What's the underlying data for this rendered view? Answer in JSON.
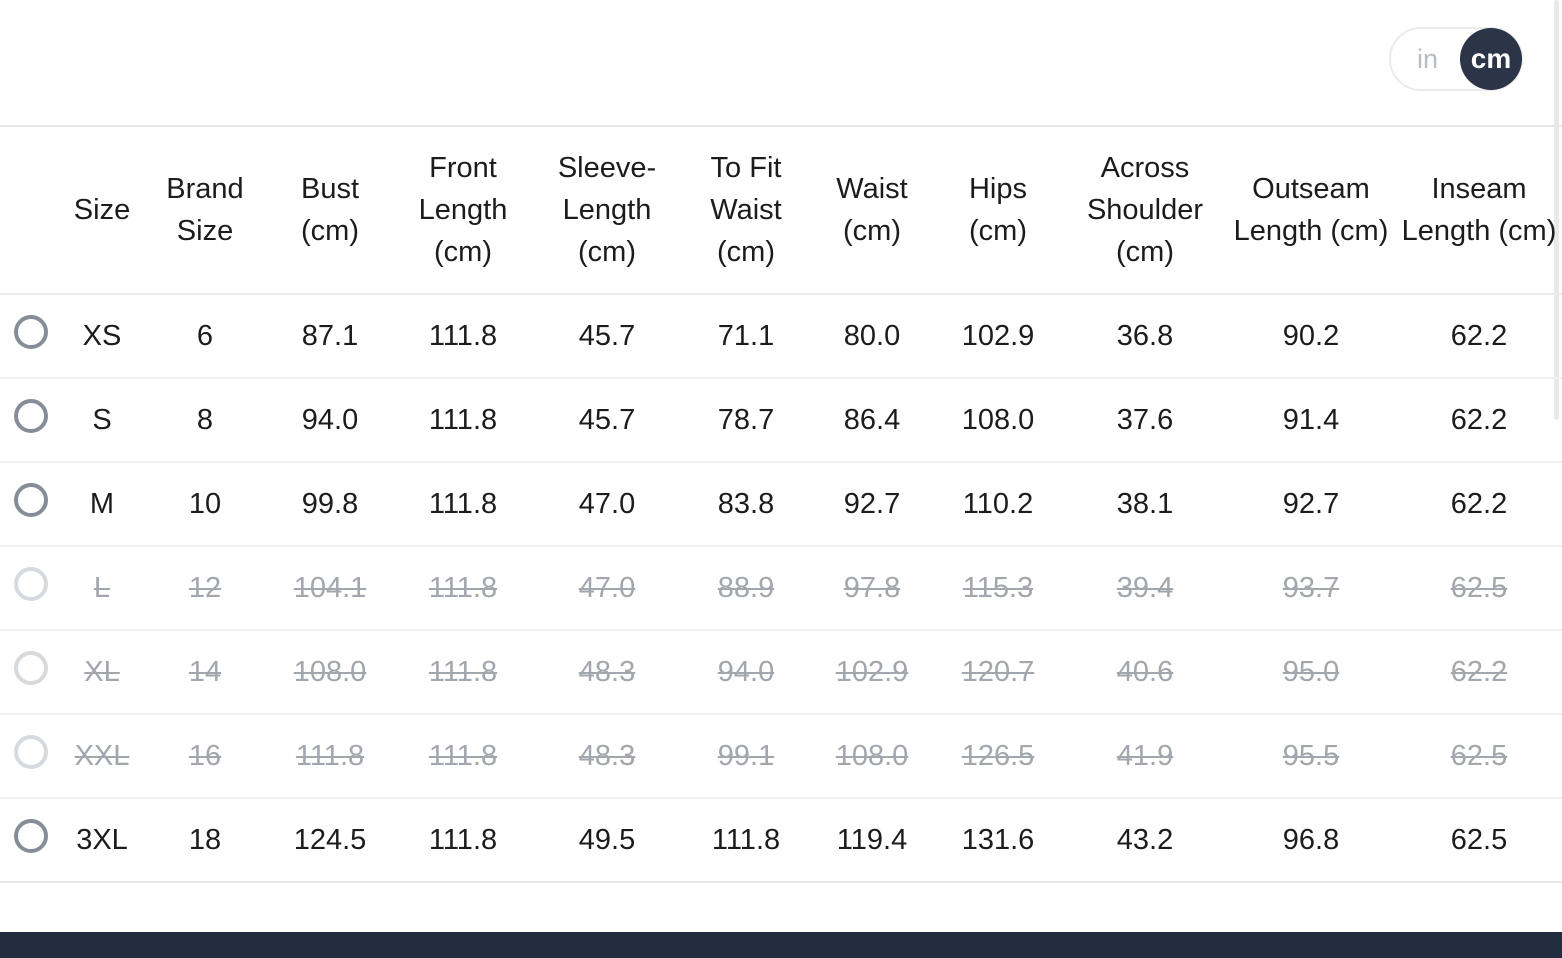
{
  "unit_toggle": {
    "options": [
      {
        "label": "in",
        "active": false
      },
      {
        "label": "cm",
        "active": true
      }
    ]
  },
  "table": {
    "columns": [
      "Size",
      "Brand Size",
      "Bust (cm)",
      "Front Length (cm)",
      "Sleeve-Length (cm)",
      "To Fit Waist (cm)",
      "Waist (cm)",
      "Hips (cm)",
      "Across Shoulder (cm)",
      "Outseam Length (cm)",
      "Inseam Length (cm)"
    ],
    "rows": [
      {
        "cells": [
          "XS",
          "6",
          "87.1",
          "111.8",
          "45.7",
          "71.1",
          "80.0",
          "102.9",
          "36.8",
          "90.2",
          "62.2"
        ],
        "available": true,
        "selected": false
      },
      {
        "cells": [
          "S",
          "8",
          "94.0",
          "111.8",
          "45.7",
          "78.7",
          "86.4",
          "108.0",
          "37.6",
          "91.4",
          "62.2"
        ],
        "available": true,
        "selected": false
      },
      {
        "cells": [
          "M",
          "10",
          "99.8",
          "111.8",
          "47.0",
          "83.8",
          "92.7",
          "110.2",
          "38.1",
          "92.7",
          "62.2"
        ],
        "available": true,
        "selected": false
      },
      {
        "cells": [
          "L",
          "12",
          "104.1",
          "111.8",
          "47.0",
          "88.9",
          "97.8",
          "115.3",
          "39.4",
          "93.7",
          "62.5"
        ],
        "available": false,
        "selected": false
      },
      {
        "cells": [
          "XL",
          "14",
          "108.0",
          "111.8",
          "48.3",
          "94.0",
          "102.9",
          "120.7",
          "40.6",
          "95.0",
          "62.2"
        ],
        "available": false,
        "selected": false
      },
      {
        "cells": [
          "XXL",
          "16",
          "111.8",
          "111.8",
          "48.3",
          "99.1",
          "108.0",
          "126.5",
          "41.9",
          "95.5",
          "62.5"
        ],
        "available": false,
        "selected": false
      },
      {
        "cells": [
          "3XL",
          "18",
          "124.5",
          "111.8",
          "49.5",
          "111.8",
          "119.4",
          "131.6",
          "43.2",
          "96.8",
          "62.5"
        ],
        "available": true,
        "selected": false
      }
    ]
  },
  "colors": {
    "toggle_active_bg": "#2b3547",
    "footer_bar_bg": "#222d40",
    "unavailable_text": "#a2a6ad",
    "text": "#1c1c1c"
  }
}
